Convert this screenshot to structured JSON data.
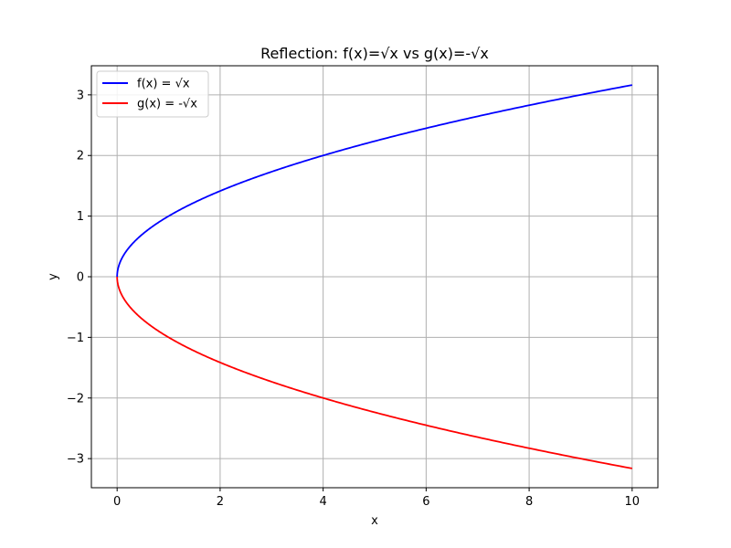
{
  "chart_data": {
    "type": "line",
    "title": "Reflection: f(x)=√x vs g(x)=-√x",
    "xlabel": "x",
    "ylabel": "y",
    "xlim": [
      -0.5,
      10.5
    ],
    "ylim": [
      -3.48,
      3.48
    ],
    "xticks": [
      0,
      2,
      4,
      6,
      8,
      10
    ],
    "yticks": [
      -3,
      -2,
      -1,
      0,
      1,
      2,
      3
    ],
    "xtick_labels": [
      "0",
      "2",
      "4",
      "6",
      "8",
      "10"
    ],
    "ytick_labels": [
      "−3",
      "−2",
      "−1",
      "0",
      "1",
      "2",
      "3"
    ],
    "grid": true,
    "legend_position": "top-left",
    "series": [
      {
        "name": "f(x) = √x",
        "color": "#0000ff",
        "x": [
          0,
          0.01,
          0.05,
          0.1,
          0.25,
          0.5,
          1,
          1.5,
          2,
          2.5,
          3,
          4,
          5,
          6,
          7,
          8,
          9,
          10
        ],
        "y": [
          0,
          0.1,
          0.224,
          0.316,
          0.5,
          0.707,
          1,
          1.225,
          1.414,
          1.581,
          1.732,
          2,
          2.236,
          2.449,
          2.646,
          2.828,
          3,
          3.162
        ]
      },
      {
        "name": "g(x) = -√x",
        "color": "#ff0000",
        "x": [
          0,
          0.01,
          0.05,
          0.1,
          0.25,
          0.5,
          1,
          1.5,
          2,
          2.5,
          3,
          4,
          5,
          6,
          7,
          8,
          9,
          10
        ],
        "y": [
          0,
          -0.1,
          -0.224,
          -0.316,
          -0.5,
          -0.707,
          -1,
          -1.225,
          -1.414,
          -1.581,
          -1.732,
          -2,
          -2.236,
          -2.449,
          -2.646,
          -2.828,
          -3,
          -3.162
        ]
      }
    ]
  }
}
